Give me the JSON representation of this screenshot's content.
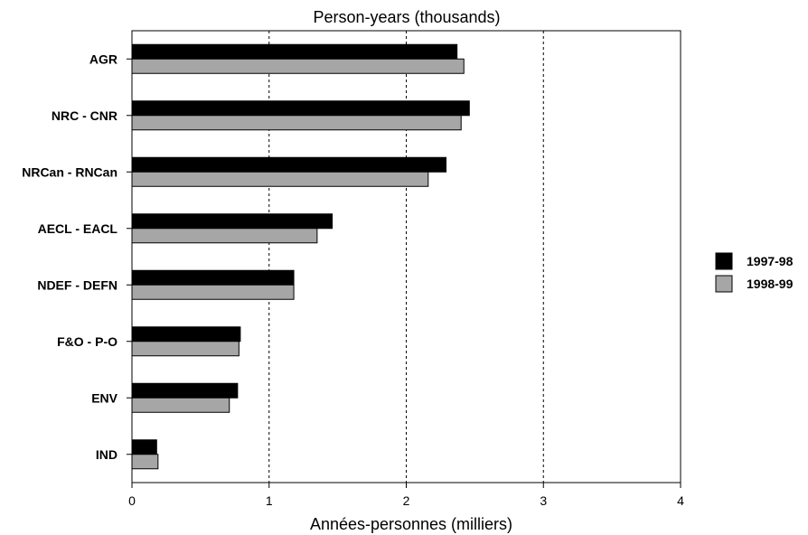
{
  "chart_data": {
    "type": "bar",
    "orientation": "horizontal",
    "title": "Person-years (thousands)",
    "xlabel": "Années-personnes (milliers)",
    "ylabel": "",
    "xlim": [
      0,
      4
    ],
    "xticks": [
      "0",
      "1",
      "2",
      "3",
      "4"
    ],
    "grid": "vertical dashed",
    "legend_position": "right",
    "categories": [
      "AGR",
      "NRC - CNR",
      "NRCan - RNCan",
      "AECL - EACL",
      "NDEF - DEFN",
      "F&O - P-O",
      "ENV",
      "IND"
    ],
    "series": [
      {
        "name": "1997-98",
        "color": "#000000",
        "values": [
          2.37,
          2.46,
          2.29,
          1.46,
          1.18,
          0.79,
          0.77,
          0.18
        ]
      },
      {
        "name": "1998-99",
        "color": "#a6a6a6",
        "values": [
          2.42,
          2.4,
          2.16,
          1.35,
          1.18,
          0.78,
          0.71,
          0.19
        ]
      }
    ]
  }
}
